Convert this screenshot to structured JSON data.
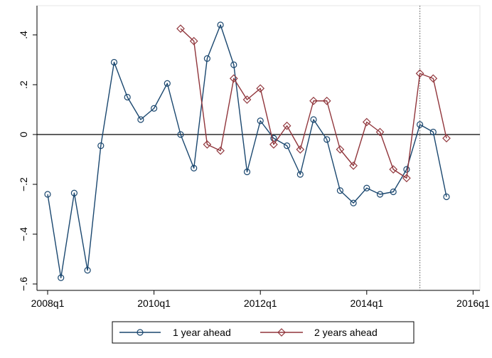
{
  "chart_data": {
    "type": "line",
    "title": "",
    "xlabel": "",
    "ylabel": "",
    "x_ticks": [
      "2008q1",
      "2010q1",
      "2012q1",
      "2014q1",
      "2016q1"
    ],
    "y_ticks": [
      "-.6",
      "-.4",
      "-.2",
      "0",
      ".2",
      ".4"
    ],
    "ylim": [
      -0.63,
      0.48
    ],
    "xlim": [
      "2008q1",
      "2016q1"
    ],
    "zero_line": true,
    "vertical_reference_line": "2015q1",
    "grid": false,
    "legend_position": "bottom",
    "series": [
      {
        "name": "1 year ahead",
        "color": "#1a476f",
        "marker": "circle",
        "x": [
          "2008q1",
          "2008q2",
          "2008q3",
          "2008q4",
          "2009q1",
          "2009q2",
          "2009q3",
          "2009q4",
          "2010q1",
          "2010q2",
          "2010q3",
          "2010q4",
          "2011q1",
          "2011q2",
          "2011q3",
          "2011q4",
          "2012q1",
          "2012q2",
          "2012q3",
          "2012q4",
          "2013q1",
          "2013q2",
          "2013q3",
          "2013q4",
          "2014q1",
          "2014q2",
          "2014q3",
          "2014q4",
          "2015q1",
          "2015q2",
          "2015q3"
        ],
        "values": [
          -0.24,
          -0.575,
          -0.235,
          -0.545,
          -0.045,
          0.29,
          0.15,
          0.06,
          0.105,
          0.205,
          0.0,
          -0.135,
          0.305,
          0.44,
          0.28,
          -0.15,
          0.055,
          -0.015,
          -0.045,
          -0.16,
          0.06,
          -0.02,
          -0.225,
          -0.275,
          -0.215,
          -0.24,
          -0.23,
          -0.14,
          0.04,
          0.01,
          -0.25
        ]
      },
      {
        "name": "2 years ahead",
        "color": "#90353b",
        "marker": "diamond",
        "x": [
          "2010q3",
          "2010q4",
          "2011q1",
          "2011q2",
          "2011q3",
          "2011q4",
          "2012q1",
          "2012q2",
          "2012q3",
          "2012q4",
          "2013q1",
          "2013q2",
          "2013q3",
          "2013q4",
          "2014q1",
          "2014q2",
          "2014q3",
          "2014q4",
          "2015q1",
          "2015q2",
          "2015q3"
        ],
        "values": [
          0.425,
          0.375,
          -0.04,
          -0.065,
          0.225,
          0.14,
          0.185,
          -0.04,
          0.035,
          -0.06,
          0.135,
          0.135,
          -0.06,
          -0.125,
          0.05,
          0.01,
          -0.14,
          -0.175,
          0.245,
          0.225,
          -0.015
        ]
      }
    ]
  }
}
